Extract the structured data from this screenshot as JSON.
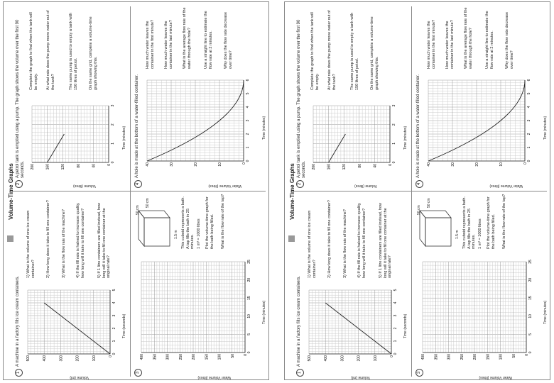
{
  "pages": [
    {
      "title": "Volume-Time Graphs",
      "q1": {
        "num": "1",
        "intro": "A machine in a factory fills ice cream containers.",
        "ylabel": "Volume (ml)",
        "xlabel": "Time (seconds)",
        "yticks": [
          "500",
          "400",
          "300",
          "200",
          "100",
          "0"
        ],
        "xticks": [
          "0",
          "1",
          "2",
          "3",
          "4",
          "5"
        ],
        "a": "1) What is the volume of one ice cream container?",
        "b": "2) How long does it take to fill one container?",
        "c": "3) What is the flow rate of the machine?",
        "d": "4) If the fill rate is halved to increase quality, how long will it take to fill one container?",
        "e": "5) If 1 litre containers are filled instead, how long will it take to fill one container at the original rate?"
      },
      "q2": {
        "num": "2",
        "intro": "A petrol tank is emptied using a pump. The graph shows the volume over the first 90 seconds.",
        "ylabel": "Volume (litres)",
        "xlabel": "Time (minutes)",
        "yticks": [
          "200",
          "160",
          "120",
          "80",
          "40",
          "0"
        ],
        "xticks": [
          "0",
          "1",
          "2",
          "3"
        ],
        "a": "Complete the graph to find when the tank will be empty.",
        "b": "At what rate does the pump move water out of the tank?",
        "c": "The same pump is used to empty a tank with 150 litres of petrol.",
        "d": "On the same grid, complete a volume-time graph showing this."
      },
      "q3": {
        "num": "3",
        "ylabel": "Water Volume (litres)",
        "xlabel": "Time (minutes)",
        "yticks": [
          "400",
          "350",
          "300",
          "250",
          "200",
          "150",
          "100",
          "50",
          "0"
        ],
        "xticks": [
          "0",
          "5",
          "10",
          "15",
          "20",
          "25"
        ],
        "dims": {
          "length": "1.5 m",
          "width": "50 cm",
          "height": "50 cm"
        },
        "a": "This cuboid represents a bath. A tap fills the bath in 25 minutes.",
        "b": "1 m³ = 1000 litres",
        "c": "Plot the volume-time graph for the bath being filled.",
        "d": "What is the flow rate of the tap?"
      },
      "q4": {
        "num": "4",
        "intro": "A hole is made at the bottom of a water-filled container.",
        "ylabel": "Water Volume (litres)",
        "xlabel": "Time (minutes)",
        "yticks": [
          "40",
          "30",
          "20",
          "10",
          "0"
        ],
        "xticks": [
          "0",
          "1",
          "2",
          "3",
          "4",
          "5",
          "6"
        ],
        "a": "How much water leaves the container in the first minute?",
        "b": "How much water leaves the container in the last minute?",
        "c": "What is the average flow rate of the water through the hole?",
        "d": "Use a straight line to estimate the flow rate at 2 minutes.",
        "e": "Why does the flow rate decrease over time?"
      }
    },
    {
      "title": "Volume-Time Graphs",
      "q1": {
        "num": "1",
        "intro": "A machine in a factory fills ice cream containers.",
        "ylabel": "Volume (ml)",
        "xlabel": "Time (seconds)",
        "yticks": [
          "500",
          "400",
          "300",
          "200",
          "100",
          "0"
        ],
        "xticks": [
          "0",
          "1",
          "2",
          "3",
          "4",
          "5"
        ],
        "a": "1) What is the volume of one ice cream container?",
        "b": "2) How long does it take to fill one container?",
        "c": "3) What is the flow rate of the machine?",
        "d": "4) If the fill rate is halved to increase quality, how long will it take to fill one container?",
        "e": "5) If 1 litre containers are filled instead, how long will it take to fill one container at the original rate?"
      },
      "q2": {
        "num": "2",
        "intro": "A petrol tank is emptied using a pump. The graph shows the volume over the first 90 seconds.",
        "ylabel": "Volume (litres)",
        "xlabel": "Time (minutes)",
        "yticks": [
          "200",
          "160",
          "120",
          "80",
          "40",
          "0"
        ],
        "xticks": [
          "0",
          "1",
          "2",
          "3"
        ],
        "a": "Complete the graph to find when the tank will be empty.",
        "b": "At what rate does the pump move water out of the tank?",
        "c": "The same pump is used to empty a tank with 150 litres of petrol.",
        "d": "On the same grid, complete a volume-time graph showing this."
      },
      "q3": {
        "num": "3",
        "ylabel": "Water Volume (litres)",
        "xlabel": "Time (minutes)",
        "yticks": [
          "400",
          "350",
          "300",
          "250",
          "200",
          "150",
          "100",
          "50",
          "0"
        ],
        "xticks": [
          "0",
          "5",
          "10",
          "15",
          "20",
          "25"
        ],
        "dims": {
          "length": "1.5 m",
          "width": "50 cm",
          "height": "50 cm"
        },
        "a": "This cuboid represents a bath. A tap fills the bath in 25 minutes.",
        "b": "1 m³ = 1000 litres",
        "c": "Plot the volume-time graph for the bath being filled.",
        "d": "What is the flow rate of the tap?"
      },
      "q4": {
        "num": "4",
        "intro": "A hole is made at the bottom of a water-filled container.",
        "ylabel": "Water Volume (litres)",
        "xlabel": "Time (minutes)",
        "yticks": [
          "40",
          "30",
          "20",
          "10",
          "0"
        ],
        "xticks": [
          "0",
          "1",
          "2",
          "3",
          "4",
          "5",
          "6"
        ],
        "a": "How much water leaves the container in the first minute?",
        "b": "How much water leaves the container in the last minute?",
        "c": "What is the average flow rate of the water through the hole?",
        "d": "Use a straight line to estimate the flow rate at 2 minutes.",
        "e": "Why does the flow rate decrease over time?"
      }
    }
  ]
}
